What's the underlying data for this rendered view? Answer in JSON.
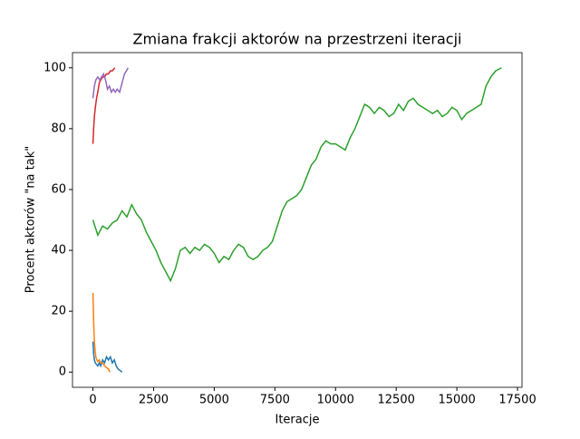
{
  "chart_data": {
    "type": "line",
    "title": "Zmiana frakcji aktorów na przestrzeni iteracji",
    "x_label": "Iteracje",
    "y_label": "Procent aktorów \"na tak\"",
    "xlim": [
      -842,
      17685
    ],
    "ylim": [
      -5,
      105
    ],
    "xticks": [
      0,
      2500,
      5000,
      7500,
      10000,
      12500,
      15000,
      17500
    ],
    "yticks": [
      0,
      20,
      40,
      60,
      80,
      100
    ],
    "series": [
      {
        "color": "#1f77b4",
        "x": [
          0,
          30,
          60,
          100,
          150,
          200,
          260,
          320,
          400,
          480,
          560,
          640,
          720,
          800,
          880,
          960,
          1040,
          1120,
          1200
        ],
        "values": [
          10,
          6,
          4,
          3,
          2.5,
          2,
          3,
          2,
          4,
          3,
          5,
          4,
          5,
          3,
          4,
          2,
          1,
          0.5,
          0
        ]
      },
      {
        "color": "#ff7f0e",
        "x": [
          0,
          20,
          40,
          60,
          90,
          120,
          160,
          200,
          260,
          320,
          400,
          480,
          560,
          640,
          700
        ],
        "values": [
          26,
          20,
          14,
          10,
          7,
          5,
          4,
          3.5,
          4,
          3,
          3,
          2,
          1.5,
          1,
          0
        ]
      },
      {
        "color": "#2ca02c",
        "x": [
          0,
          200,
          400,
          600,
          800,
          1000,
          1200,
          1400,
          1600,
          1800,
          2000,
          2200,
          2400,
          2600,
          2800,
          3000,
          3200,
          3400,
          3600,
          3800,
          4000,
          4200,
          4400,
          4600,
          4800,
          5000,
          5200,
          5400,
          5600,
          5800,
          6000,
          6200,
          6400,
          6600,
          6800,
          7000,
          7200,
          7400,
          7600,
          7800,
          8000,
          8200,
          8400,
          8600,
          8800,
          9000,
          9200,
          9400,
          9600,
          9800,
          10000,
          10200,
          10400,
          10600,
          10800,
          11000,
          11200,
          11400,
          11600,
          11800,
          12000,
          12200,
          12400,
          12600,
          12800,
          13000,
          13200,
          13400,
          13600,
          13800,
          14000,
          14200,
          14400,
          14600,
          14800,
          15000,
          15200,
          15400,
          15600,
          15800,
          16000,
          16200,
          16400,
          16600,
          16843
        ],
        "values": [
          50,
          45,
          48,
          47,
          49,
          50,
          53,
          51,
          55,
          52,
          50,
          46,
          43,
          40,
          36,
          33,
          30,
          34,
          40,
          41,
          39,
          41,
          40,
          42,
          41,
          39,
          36,
          38,
          37,
          40,
          42,
          41,
          38,
          37,
          38,
          40,
          41,
          43,
          48,
          53,
          56,
          57,
          58,
          60,
          64,
          68,
          70,
          74,
          76,
          75,
          75,
          74,
          73,
          77,
          80,
          84,
          88,
          87,
          85,
          87,
          86,
          84,
          85,
          88,
          86,
          89,
          90,
          88,
          87,
          86,
          85,
          86,
          84,
          85,
          87,
          86,
          83,
          85,
          86,
          87,
          88,
          94,
          97,
          99,
          100
        ]
      },
      {
        "color": "#d62728",
        "x": [
          0,
          30,
          60,
          100,
          150,
          200,
          260,
          320,
          400,
          480,
          560,
          640,
          720,
          800,
          900
        ],
        "values": [
          75,
          80,
          84,
          87,
          90,
          92,
          95,
          96,
          97,
          97,
          98,
          98,
          99,
          99,
          100
        ]
      },
      {
        "color": "#9467bd",
        "x": [
          0,
          60,
          120,
          200,
          280,
          360,
          440,
          520,
          600,
          680,
          760,
          840,
          920,
          1000,
          1100,
          1200,
          1300,
          1380,
          1450
        ],
        "values": [
          90,
          94,
          96,
          97,
          96,
          97,
          98,
          96,
          93,
          94,
          92,
          93,
          92,
          93,
          92,
          95,
          98,
          99,
          100
        ]
      }
    ]
  }
}
